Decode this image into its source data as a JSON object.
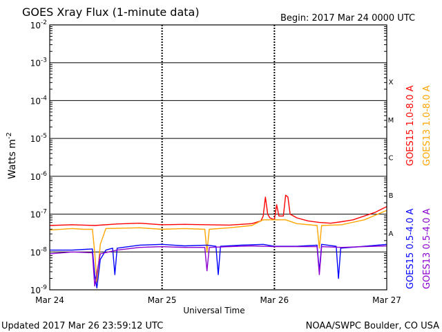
{
  "chart_data": {
    "type": "line",
    "title": "GOES Xray Flux (1-minute data)",
    "begin_label": "Begin:  2017 Mar 24 0000 UTC",
    "xlabel": "Universal Time",
    "ylabel_base": "Watts m",
    "ylabel_exp": "-2",
    "footer_left": "Updated 2017 Mar 26 23:59:12 UTC",
    "footer_right": "NOAA/SWPC Boulder, CO USA",
    "x_ticks": [
      "Mar 24",
      "Mar 25",
      "Mar 26",
      "Mar 27"
    ],
    "x_range_days": [
      0,
      3
    ],
    "y_scale": "log",
    "y_exponent_range": [
      -9,
      -2
    ],
    "y_ticks": [
      {
        "base": "10",
        "exp": "-2"
      },
      {
        "base": "10",
        "exp": "-3"
      },
      {
        "base": "10",
        "exp": "-4"
      },
      {
        "base": "10",
        "exp": "-5"
      },
      {
        "base": "10",
        "exp": "-6"
      },
      {
        "base": "10",
        "exp": "-7"
      },
      {
        "base": "10",
        "exp": "-8"
      },
      {
        "base": "10",
        "exp": "-9"
      }
    ],
    "flare_classes": [
      {
        "label": "X",
        "exp": -4
      },
      {
        "label": "M",
        "exp": -5
      },
      {
        "label": "C",
        "exp": -6
      },
      {
        "label": "B",
        "exp": -7
      },
      {
        "label": "A",
        "exp": -8
      }
    ],
    "series": [
      {
        "name": "GOES15 1.0-8.0 A",
        "color": "#ff0000",
        "points": [
          [
            0,
            -7.3
          ],
          [
            0.2,
            -7.28
          ],
          [
            0.4,
            -7.3
          ],
          [
            0.6,
            -7.26
          ],
          [
            0.8,
            -7.24
          ],
          [
            1.0,
            -7.28
          ],
          [
            1.2,
            -7.27
          ],
          [
            1.4,
            -7.28
          ],
          [
            1.6,
            -7.29
          ],
          [
            1.8,
            -7.25
          ],
          [
            1.88,
            -7.18
          ],
          [
            1.9,
            -7.05
          ],
          [
            1.92,
            -6.55
          ],
          [
            1.94,
            -7.0
          ],
          [
            1.96,
            -7.1
          ],
          [
            2.0,
            -7.15
          ],
          [
            2.02,
            -6.75
          ],
          [
            2.04,
            -7.05
          ],
          [
            2.08,
            -7.05
          ],
          [
            2.1,
            -6.5
          ],
          [
            2.12,
            -6.55
          ],
          [
            2.14,
            -7.0
          ],
          [
            2.2,
            -7.1
          ],
          [
            2.3,
            -7.18
          ],
          [
            2.4,
            -7.22
          ],
          [
            2.5,
            -7.24
          ],
          [
            2.6,
            -7.2
          ],
          [
            2.7,
            -7.15
          ],
          [
            2.8,
            -7.05
          ],
          [
            2.9,
            -6.95
          ],
          [
            3.0,
            -6.8
          ]
        ]
      },
      {
        "name": "GOES13 1.0-8.0 A",
        "color": "#ffa500",
        "points": [
          [
            0,
            -7.42
          ],
          [
            0.2,
            -7.38
          ],
          [
            0.3,
            -7.4
          ],
          [
            0.38,
            -7.4
          ],
          [
            0.4,
            -8.0
          ],
          [
            0.42,
            -8.8
          ],
          [
            0.45,
            -7.8
          ],
          [
            0.5,
            -7.38
          ],
          [
            0.8,
            -7.36
          ],
          [
            1.0,
            -7.4
          ],
          [
            1.2,
            -7.38
          ],
          [
            1.38,
            -7.4
          ],
          [
            1.4,
            -8.0
          ],
          [
            1.42,
            -7.4
          ],
          [
            1.6,
            -7.36
          ],
          [
            1.8,
            -7.3
          ],
          [
            1.9,
            -7.15
          ],
          [
            2.0,
            -7.15
          ],
          [
            2.1,
            -7.15
          ],
          [
            2.2,
            -7.25
          ],
          [
            2.38,
            -7.3
          ],
          [
            2.4,
            -7.9
          ],
          [
            2.42,
            -7.3
          ],
          [
            2.6,
            -7.28
          ],
          [
            2.8,
            -7.15
          ],
          [
            3.0,
            -6.9
          ]
        ]
      },
      {
        "name": "GOES15 0.5-4.0 A",
        "color": "#0000ff",
        "points": [
          [
            0,
            -7.95
          ],
          [
            0.2,
            -7.95
          ],
          [
            0.38,
            -7.92
          ],
          [
            0.4,
            -8.6
          ],
          [
            0.42,
            -8.95
          ],
          [
            0.45,
            -8.2
          ],
          [
            0.5,
            -7.95
          ],
          [
            0.56,
            -7.9
          ],
          [
            0.58,
            -8.6
          ],
          [
            0.6,
            -7.9
          ],
          [
            0.8,
            -7.82
          ],
          [
            1.0,
            -7.8
          ],
          [
            1.2,
            -7.84
          ],
          [
            1.4,
            -7.82
          ],
          [
            1.48,
            -7.85
          ],
          [
            1.5,
            -8.6
          ],
          [
            1.52,
            -7.85
          ],
          [
            1.7,
            -7.82
          ],
          [
            1.9,
            -7.8
          ],
          [
            2.0,
            -7.85
          ],
          [
            2.2,
            -7.85
          ],
          [
            2.38,
            -7.82
          ],
          [
            2.4,
            -8.5
          ],
          [
            2.42,
            -7.8
          ],
          [
            2.55,
            -7.85
          ],
          [
            2.57,
            -8.7
          ],
          [
            2.59,
            -7.9
          ],
          [
            2.8,
            -7.85
          ],
          [
            3.0,
            -7.8
          ]
        ]
      },
      {
        "name": "GOES13 0.5-4.0 A",
        "color": "#8b00d0",
        "points": [
          [
            0,
            -8.05
          ],
          [
            0.2,
            -8.0
          ],
          [
            0.38,
            -8.02
          ],
          [
            0.4,
            -8.9
          ],
          [
            0.45,
            -8.05
          ],
          [
            0.6,
            -7.95
          ],
          [
            0.8,
            -7.88
          ],
          [
            1.0,
            -7.86
          ],
          [
            1.2,
            -7.88
          ],
          [
            1.38,
            -7.88
          ],
          [
            1.4,
            -8.5
          ],
          [
            1.42,
            -7.88
          ],
          [
            1.6,
            -7.86
          ],
          [
            1.8,
            -7.84
          ],
          [
            2.0,
            -7.86
          ],
          [
            2.2,
            -7.86
          ],
          [
            2.38,
            -7.86
          ],
          [
            2.4,
            -8.6
          ],
          [
            2.42,
            -7.86
          ],
          [
            2.6,
            -7.88
          ],
          [
            2.8,
            -7.86
          ],
          [
            3.0,
            -7.84
          ]
        ]
      }
    ]
  }
}
